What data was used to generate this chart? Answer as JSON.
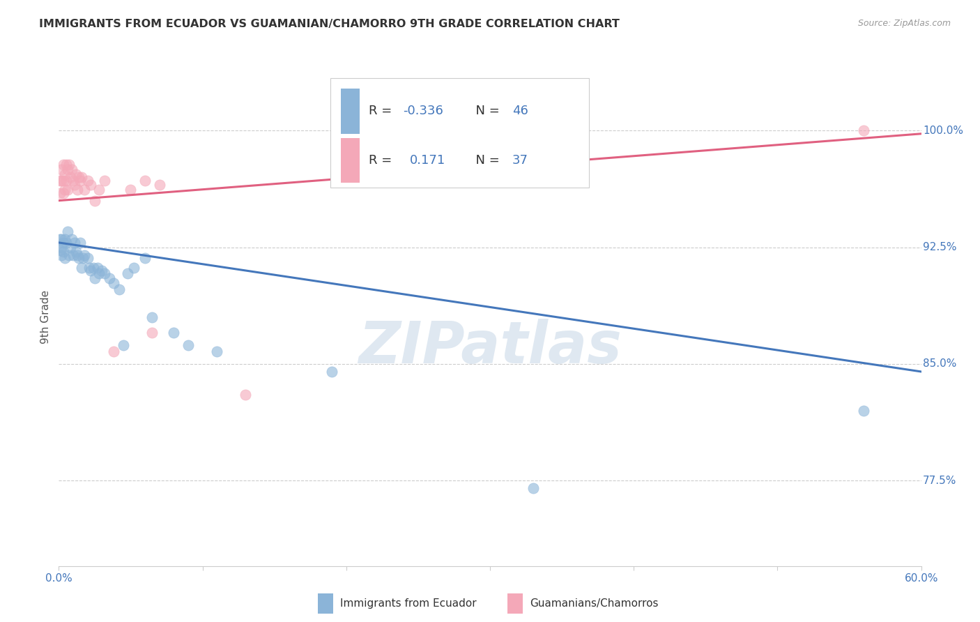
{
  "title": "IMMIGRANTS FROM ECUADOR VS GUAMANIAN/CHAMORRO 9TH GRADE CORRELATION CHART",
  "source": "Source: ZipAtlas.com",
  "ylabel": "9th Grade",
  "watermark": "ZIPatlas",
  "legend_series1_label": "Immigrants from Ecuador",
  "legend_series2_label": "Guamanians/Chamorros",
  "legend_r1_prefix": "R = ",
  "legend_r1_val": "-0.336",
  "legend_n1": "N = 46",
  "legend_r2_prefix": "R =  ",
  "legend_r2_val": "0.171",
  "legend_n2": "N = 37",
  "color1": "#8BB4D8",
  "color2": "#F4A8B8",
  "line_color1": "#4477BB",
  "line_color2": "#E06080",
  "val_color": "#4477BB",
  "background": "#FFFFFF",
  "grid_color": "#CCCCCC",
  "ytick_color": "#4477BB",
  "title_color": "#333333",
  "xlim": [
    0.0,
    0.6
  ],
  "ylim": [
    0.72,
    1.04
  ],
  "yticks": [
    0.775,
    0.85,
    0.925,
    1.0
  ],
  "ytick_labels": [
    "77.5%",
    "85.0%",
    "92.5%",
    "100.0%"
  ],
  "scatter1_x": [
    0.001,
    0.001,
    0.002,
    0.002,
    0.002,
    0.003,
    0.003,
    0.004,
    0.004,
    0.005,
    0.006,
    0.007,
    0.008,
    0.009,
    0.01,
    0.011,
    0.012,
    0.013,
    0.014,
    0.015,
    0.016,
    0.017,
    0.018,
    0.02,
    0.021,
    0.022,
    0.024,
    0.025,
    0.027,
    0.028,
    0.03,
    0.032,
    0.035,
    0.038,
    0.042,
    0.045,
    0.048,
    0.052,
    0.06,
    0.065,
    0.08,
    0.09,
    0.11,
    0.19,
    0.33,
    0.56
  ],
  "scatter1_y": [
    0.93,
    0.923,
    0.93,
    0.925,
    0.92,
    0.928,
    0.922,
    0.93,
    0.918,
    0.928,
    0.935,
    0.92,
    0.925,
    0.93,
    0.92,
    0.928,
    0.922,
    0.92,
    0.918,
    0.928,
    0.912,
    0.918,
    0.92,
    0.918,
    0.912,
    0.91,
    0.912,
    0.905,
    0.912,
    0.908,
    0.91,
    0.908,
    0.905,
    0.902,
    0.898,
    0.862,
    0.908,
    0.912,
    0.918,
    0.88,
    0.87,
    0.862,
    0.858,
    0.845,
    0.77,
    0.82
  ],
  "scatter2_x": [
    0.001,
    0.001,
    0.002,
    0.002,
    0.003,
    0.003,
    0.003,
    0.004,
    0.004,
    0.005,
    0.005,
    0.006,
    0.006,
    0.007,
    0.008,
    0.009,
    0.01,
    0.011,
    0.012,
    0.013,
    0.014,
    0.015,
    0.016,
    0.018,
    0.02,
    0.022,
    0.025,
    0.028,
    0.032,
    0.038,
    0.05,
    0.06,
    0.065,
    0.07,
    0.13,
    0.2,
    0.56
  ],
  "scatter2_y": [
    0.968,
    0.96,
    0.975,
    0.968,
    0.978,
    0.968,
    0.96,
    0.972,
    0.962,
    0.978,
    0.968,
    0.975,
    0.962,
    0.978,
    0.97,
    0.975,
    0.968,
    0.965,
    0.972,
    0.962,
    0.97,
    0.968,
    0.97,
    0.962,
    0.968,
    0.965,
    0.955,
    0.962,
    0.968,
    0.858,
    0.962,
    0.968,
    0.87,
    0.965,
    0.83,
    0.978,
    1.0
  ],
  "trendline1_x": [
    0.0,
    0.6
  ],
  "trendline1_y": [
    0.928,
    0.845
  ],
  "trendline2_x": [
    0.0,
    0.6
  ],
  "trendline2_y": [
    0.955,
    0.998
  ],
  "xticks": [
    0.0,
    0.1,
    0.2,
    0.3,
    0.4,
    0.5,
    0.6
  ],
  "xtick_show": [
    "0.0%",
    "",
    "",
    "",
    "",
    "",
    "60.0%"
  ]
}
